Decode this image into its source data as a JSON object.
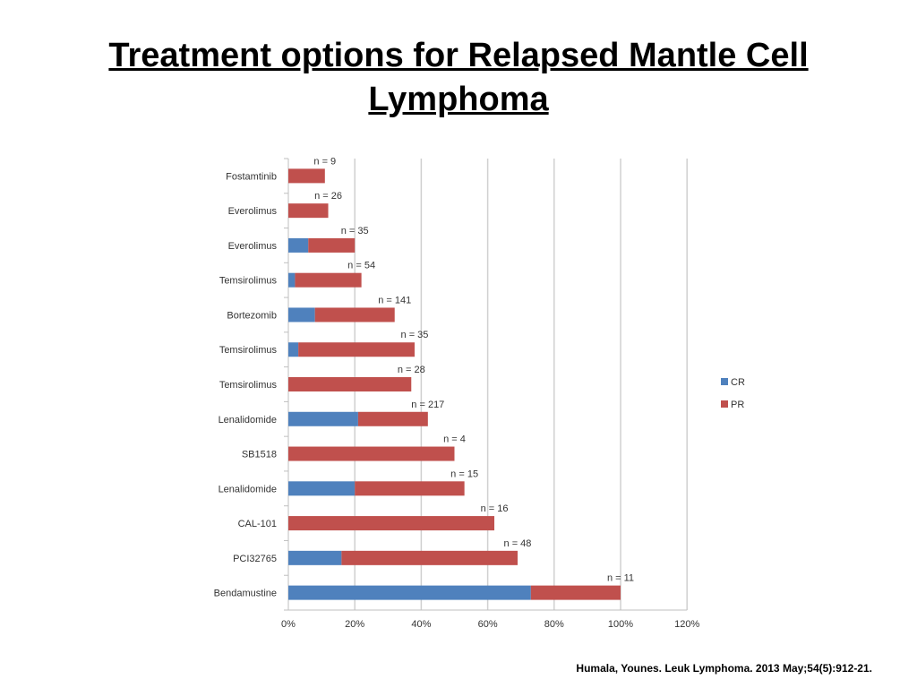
{
  "slide": {
    "title": "Treatment options for Relapsed Mantle Cell Lymphoma",
    "citation": "Humala, Younes. Leuk Lymphoma. 2013 May;54(5):912-21."
  },
  "chart_data": {
    "type": "bar",
    "orientation": "horizontal",
    "stacked": true,
    "categories": [
      "Fostamtinib",
      "Everolimus",
      "Everolimus",
      "Temsirolimus",
      "Bortezomib",
      "Temsirolimus",
      "Temsirolimus",
      "Lenalidomide",
      "SB1518",
      "Lenalidomide",
      "CAL-101",
      "PCI32765",
      "Bendamustine"
    ],
    "n_labels": [
      "n  = 9",
      "n = 26",
      "n = 35",
      "n = 54",
      "n = 141",
      "n = 35",
      "n = 28",
      "n = 217",
      "n = 4",
      "n = 15",
      "n = 16",
      "n = 48",
      "n = 11"
    ],
    "series": [
      {
        "name": "CR",
        "color": "#4F81BD",
        "values": [
          0,
          0,
          6,
          2,
          8,
          3,
          0,
          21,
          0,
          20,
          0,
          16,
          73
        ]
      },
      {
        "name": "PR",
        "color": "#C0504D",
        "values": [
          11,
          12,
          14,
          20,
          24,
          35,
          37,
          21,
          50,
          33,
          62,
          53,
          27
        ]
      }
    ],
    "xlim": [
      0,
      120
    ],
    "x_ticks": [
      "0%",
      "20%",
      "40%",
      "60%",
      "80%",
      "100%",
      "120%"
    ],
    "grid": true,
    "legend": "right"
  }
}
